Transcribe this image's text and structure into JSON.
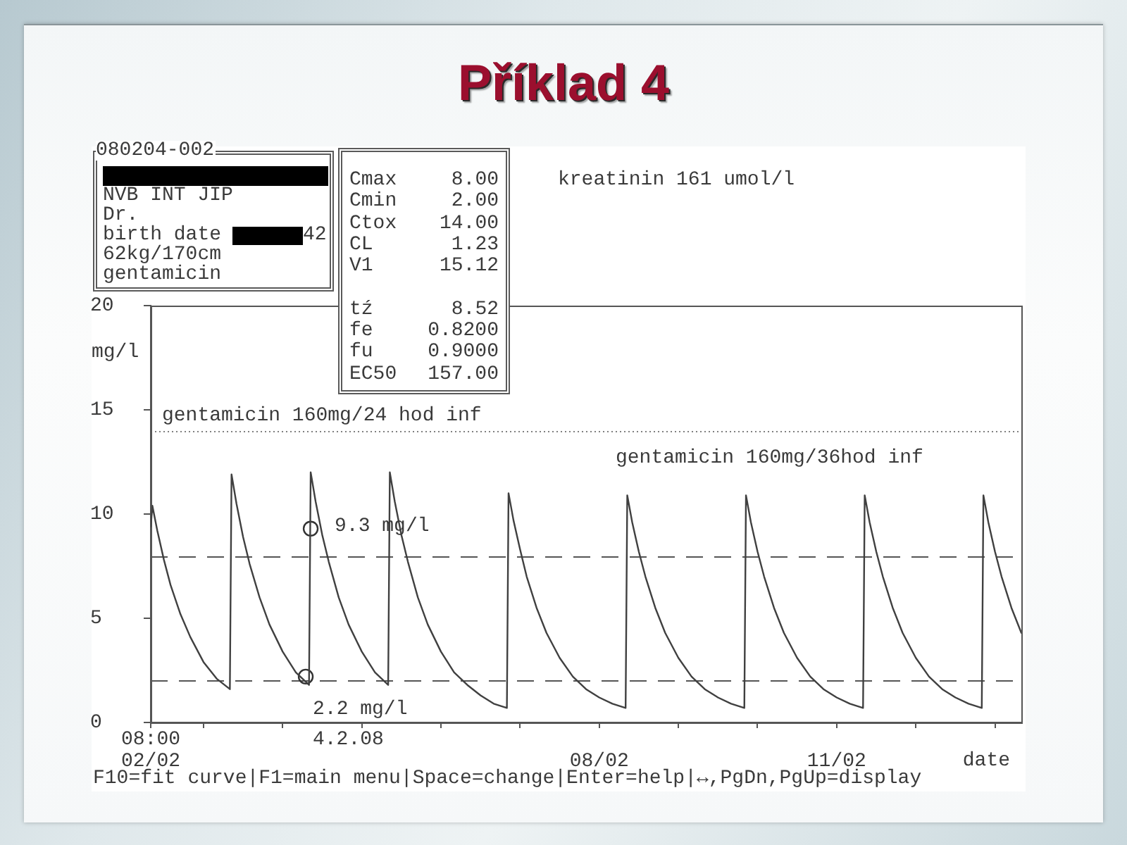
{
  "chart_data": {
    "type": "line",
    "title": "Příklad 4",
    "xlabel": "date",
    "ylabel": "mg/l",
    "xlim": [
      "--02-02T08:00",
      "--02-13T08:00"
    ],
    "xticks": [
      {
        "value": "--02-02T08:00",
        "label": "08:00\n02/02"
      },
      {
        "value": "--02-03",
        "label": null
      },
      {
        "value": "--02-04",
        "label": null
      },
      {
        "value": "--02-05",
        "label": null
      },
      {
        "value": "--02-06",
        "label": null
      },
      {
        "value": "--02-07",
        "label": null
      },
      {
        "value": "--02-08",
        "label": "08/02"
      },
      {
        "value": "--02-09",
        "label": null
      },
      {
        "value": "--02-10",
        "label": null
      },
      {
        "value": "--02-11",
        "label": "11/02"
      },
      {
        "value": "--02-12",
        "label": null
      },
      {
        "value": "--02-13",
        "label": null
      }
    ],
    "ylim": [
      0,
      20
    ],
    "yticks": [
      0,
      5,
      10,
      15,
      20
    ],
    "series": [
      {
        "color": "#404040",
        "marker": "none",
        "x": [
          "--02-02T08:00",
          "--02-02T08:30",
          "--02-02T10:00",
          "--02-02T12:00",
          "--02-02T14:00",
          "--02-02T17:00",
          "--02-02T20:00",
          "--02-03T00:00",
          "--02-03T04:00",
          "--02-03T08:00",
          "--02-03T08:30",
          "--02-03T10:00",
          "--02-03T12:00",
          "--02-03T14:00",
          "--02-03T17:00",
          "--02-03T20:00",
          "--02-04T00:00",
          "--02-04T04:00",
          "--02-04T08:00",
          "--02-04T08:30",
          "--02-04T10:00",
          "--02-04T12:00",
          "--02-04T14:00",
          "--02-04T17:00",
          "--02-04T20:00",
          "--02-05T00:00",
          "--02-05T04:00",
          "--02-05T08:00",
          "--02-05T08:30",
          "--02-05T10:00",
          "--02-05T12:00",
          "--02-05T14:00",
          "--02-05T17:00",
          "--02-05T20:00",
          "--02-06T00:00",
          "--02-06T04:00",
          "--02-06T08:00",
          "--02-06T12:00",
          "--02-06T16:00",
          "--02-06T20:00",
          "--02-06T20:30",
          "--02-06T22:00",
          "--02-07T00:00",
          "--02-07T02:00",
          "--02-07T05:00",
          "--02-07T08:00",
          "--02-07T12:00",
          "--02-07T16:00",
          "--02-07T20:00",
          "--02-08T00:00",
          "--02-08T04:00",
          "--02-08T08:00",
          "--02-08T08:30",
          "--02-08T10:00",
          "--02-08T12:00",
          "--02-08T14:00",
          "--02-08T17:00",
          "--02-08T20:00",
          "--02-09T00:00",
          "--02-09T04:00",
          "--02-09T08:00",
          "--02-09T12:00",
          "--02-09T16:00",
          "--02-09T20:00",
          "--02-09T20:30",
          "--02-09T22:00",
          "--02-10T00:00",
          "--02-10T02:00",
          "--02-10T05:00",
          "--02-10T08:00",
          "--02-10T12:00",
          "--02-10T16:00",
          "--02-10T20:00",
          "--02-11T00:00",
          "--02-11T04:00",
          "--02-11T08:00",
          "--02-11T08:30",
          "--02-11T10:00",
          "--02-11T12:00",
          "--02-11T14:00",
          "--02-11T17:00",
          "--02-11T20:00",
          "--02-12T00:00",
          "--02-12T04:00",
          "--02-12T08:00",
          "--02-12T12:00",
          "--02-12T16:00",
          "--02-12T20:00",
          "--02-12T20:30",
          "--02-12T22:00",
          "--02-13T00:00",
          "--02-13T02:00",
          "--02-13T05:00",
          "--02-13T08:00"
        ],
        "values": [
          9.4,
          10.4,
          9.2,
          7.8,
          6.6,
          5.2,
          4.1,
          2.9,
          2.1,
          1.6,
          11.9,
          10.5,
          8.9,
          7.6,
          6.0,
          4.7,
          3.4,
          2.4,
          1.8,
          12.0,
          10.6,
          9.0,
          7.7,
          6.0,
          4.7,
          3.4,
          2.4,
          1.8,
          12.0,
          10.6,
          9.0,
          7.7,
          6.0,
          4.7,
          3.4,
          2.4,
          1.8,
          1.3,
          0.9,
          0.7,
          11.0,
          9.7,
          8.3,
          7.0,
          5.5,
          4.3,
          3.1,
          2.2,
          1.6,
          1.2,
          0.9,
          0.7,
          10.9,
          9.6,
          8.2,
          7.0,
          5.5,
          4.3,
          3.1,
          2.2,
          1.6,
          1.2,
          0.9,
          0.7,
          10.9,
          9.6,
          8.2,
          7.0,
          5.5,
          4.3,
          3.1,
          2.2,
          1.6,
          1.2,
          0.9,
          0.7,
          10.9,
          9.6,
          8.2,
          7.0,
          5.5,
          4.3,
          3.1,
          2.2,
          1.6,
          1.2,
          0.9,
          0.7,
          10.9,
          9.6,
          8.2,
          7.0,
          5.5,
          4.3
        ]
      },
      {
        "type": "scatter",
        "color": "#333333",
        "marker": "circle",
        "x": [
          "--02-04T07:00",
          "--02-04T08:30"
        ],
        "values": [
          2.2,
          9.3
        ],
        "value_labels": [
          "2.2 mg/l",
          "9.3 mg/l"
        ]
      }
    ],
    "ref_lines": [
      {
        "axis": "y",
        "value": 14,
        "color": "#808080",
        "line_style": "dotted"
      },
      {
        "axis": "y",
        "value": 8,
        "color": "#555555",
        "line_style": "dashed"
      },
      {
        "axis": "y",
        "value": 2,
        "color": "#555555",
        "line_style": "dashed"
      }
    ],
    "annotations": [
      "080204-002",
      "NVB INT JIP",
      "Dr.",
      "birth date",
      "42",
      "62kg/170cm",
      "gentamicin",
      "Cmax 8.00",
      "Cmin 2.00",
      "Ctox 14.00",
      "CL 1.23",
      "V1 15.12",
      "tź 8.52",
      "fe 0.8200",
      "fu 0.9000",
      "EC50 157.00",
      "kreatinin 161 umol/l",
      "gentamicin 160mg/24 hod inf",
      "gentamicin 160mg/36hod inf",
      "4.2.08",
      "F10=fit curve|F1=main menu|Space=change|Enter=help|↔,PgDn,PgUp=display"
    ]
  }
}
